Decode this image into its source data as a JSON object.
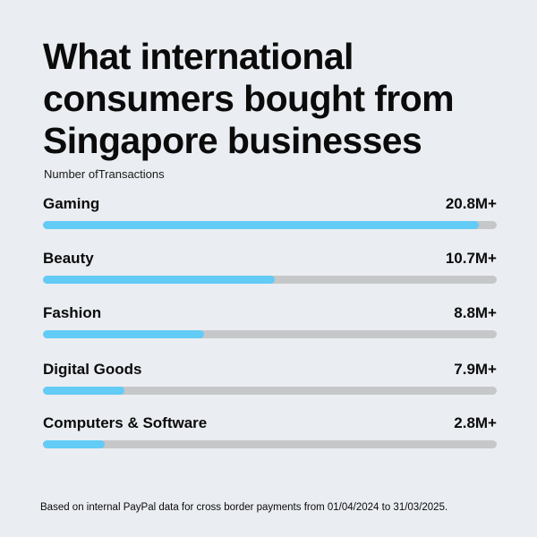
{
  "chart_data": {
    "type": "bar",
    "orientation": "horizontal",
    "title": "What international consumers bought from Singapore businesses",
    "subtitle": "Number ofTransactions",
    "categories": [
      "Gaming",
      "Beauty",
      "Fashion",
      "Digital Goods",
      "Computers & Software"
    ],
    "value_labels": [
      "20.8M+",
      "10.7M+",
      "8.8M+",
      "7.9M+",
      "2.8M+"
    ],
    "values": [
      20.8,
      10.7,
      8.8,
      7.9,
      2.8
    ],
    "fill_fractions": [
      0.96,
      0.51,
      0.355,
      0.18,
      0.137
    ],
    "units": "million transactions",
    "footnote": "Based on internal PayPal data for cross border payments from 01/04/2024 to 31/03/2025."
  },
  "colors": {
    "background": "#eaedf1",
    "bar_fill": "#62cbf6",
    "bar_track": "#c6c7c9",
    "text": "#0b0b0b"
  }
}
